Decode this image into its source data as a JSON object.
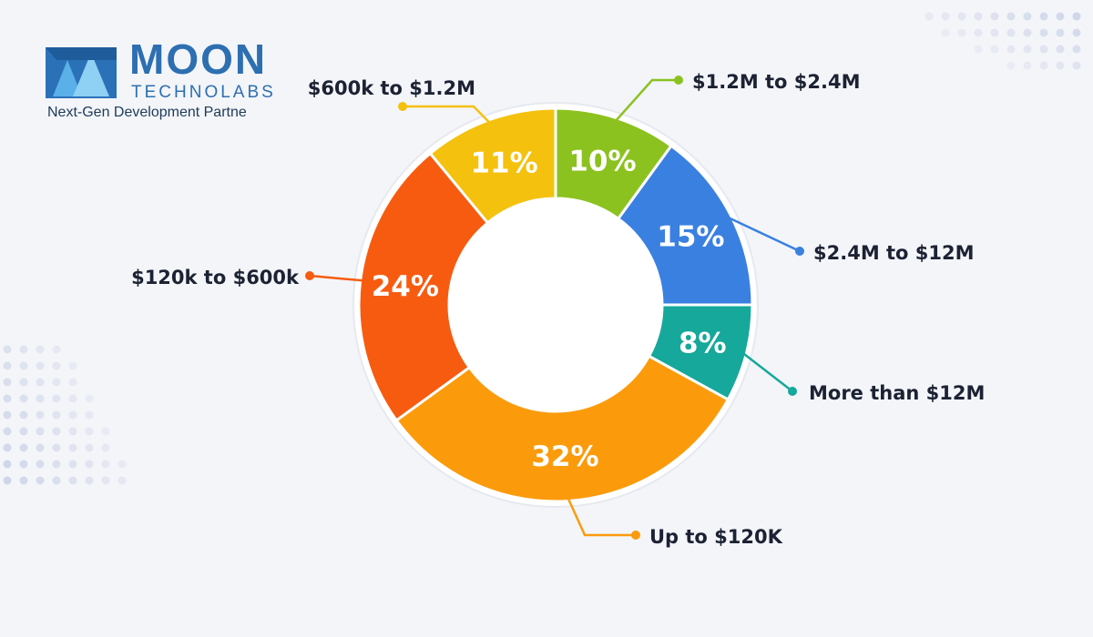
{
  "brand": {
    "name": "MOON",
    "sub": "TECHNOLABS",
    "tagline": "Next-Gen Development Partne"
  },
  "chart_data": {
    "type": "pie",
    "donut": true,
    "title": "",
    "legend": "outside labels with leader lines",
    "slices": [
      {
        "label": "$1.2M to $2.4M",
        "value": 10,
        "value_label": "10%",
        "color": "#8cc21f"
      },
      {
        "label": "$2.4M to $12M",
        "value": 15,
        "value_label": "15%",
        "color": "#3a80e0"
      },
      {
        "label": "More than $12M",
        "value": 8,
        "value_label": "8%",
        "color": "#16a89a"
      },
      {
        "label": "Up to $120K",
        "value": 32,
        "value_label": "32%",
        "color": "#fb9b0c"
      },
      {
        "label": "$120k to $600k",
        "value": 24,
        "value_label": "24%",
        "color": "#f75b10"
      },
      {
        "label": "$600k to $1.2M",
        "value": 11,
        "value_label": "11%",
        "color": "#f4c10f"
      }
    ]
  }
}
